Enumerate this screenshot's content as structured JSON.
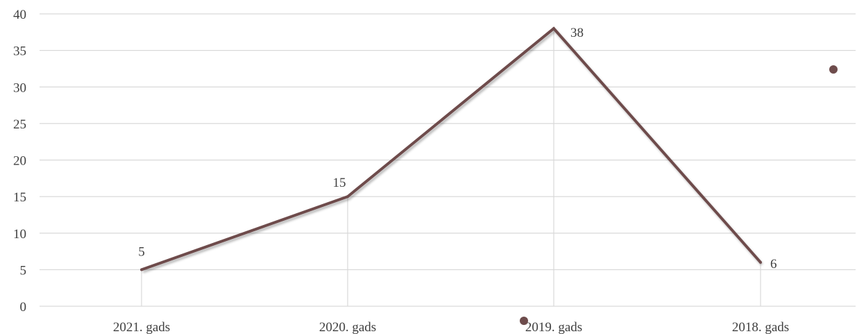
{
  "chart_data": {
    "type": "line",
    "categories": [
      "2021. gads",
      "2020. gads",
      "2019. gads",
      "2018. gads"
    ],
    "series": [
      {
        "values": [
          5,
          15,
          38,
          6
        ],
        "color": "#6e4c4c"
      }
    ],
    "data_labels": [
      "5",
      "15",
      "38",
      "6"
    ],
    "y_ticks": [
      "0",
      "5",
      "10",
      "15",
      "20",
      "25",
      "30",
      "35",
      "40"
    ],
    "ylim": [
      0,
      40
    ],
    "grid": true,
    "gridline_color": "#d9d9d9",
    "legend_marker_color": "#6e4c4c"
  }
}
